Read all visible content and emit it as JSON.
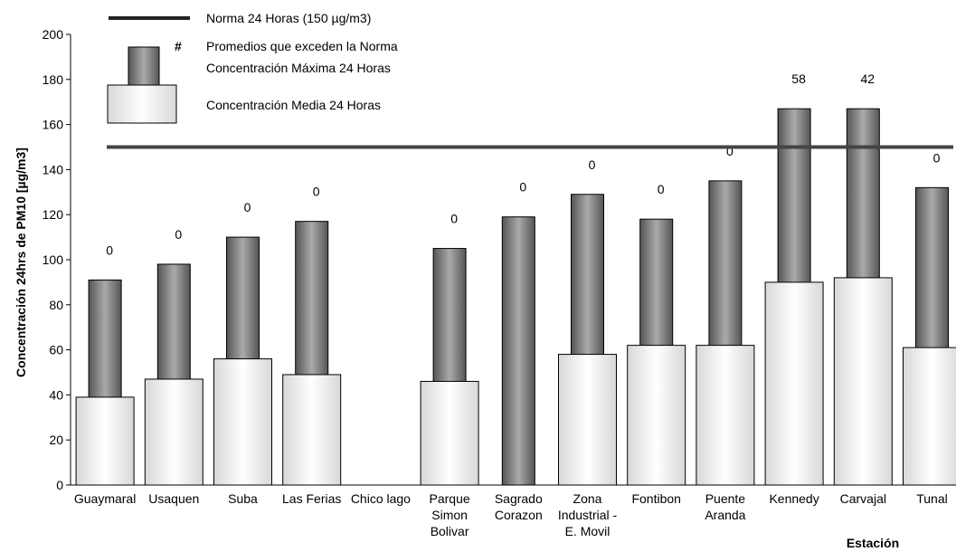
{
  "chart_data": {
    "type": "bar",
    "y_label": "Concentración 24hrs de PM10 [µg/m3]",
    "x_label": "Estación",
    "categories": [
      "Guaymaral",
      "Usaquen",
      "Suba",
      "Las Ferias",
      "Chico lago",
      "Parque\nSimon\nBolivar",
      "Sagrado\nCorazon",
      "Zona\nIndustrial -\nE. Movil",
      "Fontibon",
      "Puente\nAranda",
      "Kennedy",
      "Carvajal",
      "Tunal"
    ],
    "series": [
      {
        "name": "Concentración Máxima 24 Horas",
        "color": "#777777",
        "values": [
          91,
          98,
          110,
          117,
          null,
          105,
          119,
          129,
          118,
          135,
          167,
          167,
          132
        ]
      },
      {
        "name": "Concentración Media 24 Horas",
        "color": "#eeeeee",
        "values": [
          39,
          47,
          56,
          49,
          null,
          46,
          null,
          58,
          62,
          62,
          90,
          92,
          61
        ]
      }
    ],
    "exceedances": {
      "name": "Promedios que exceden la Norma",
      "symbol": "#",
      "values": [
        0,
        0,
        0,
        0,
        null,
        0,
        0,
        0,
        0,
        0,
        58,
        42,
        0
      ]
    },
    "norm": {
      "name": "Norma 24 Horas (150 µg/m3)",
      "value": 150,
      "color": "#444444"
    },
    "ylim": [
      0,
      200
    ],
    "yticks": [
      0,
      20,
      40,
      60,
      80,
      100,
      120,
      140,
      160,
      180,
      200
    ]
  }
}
